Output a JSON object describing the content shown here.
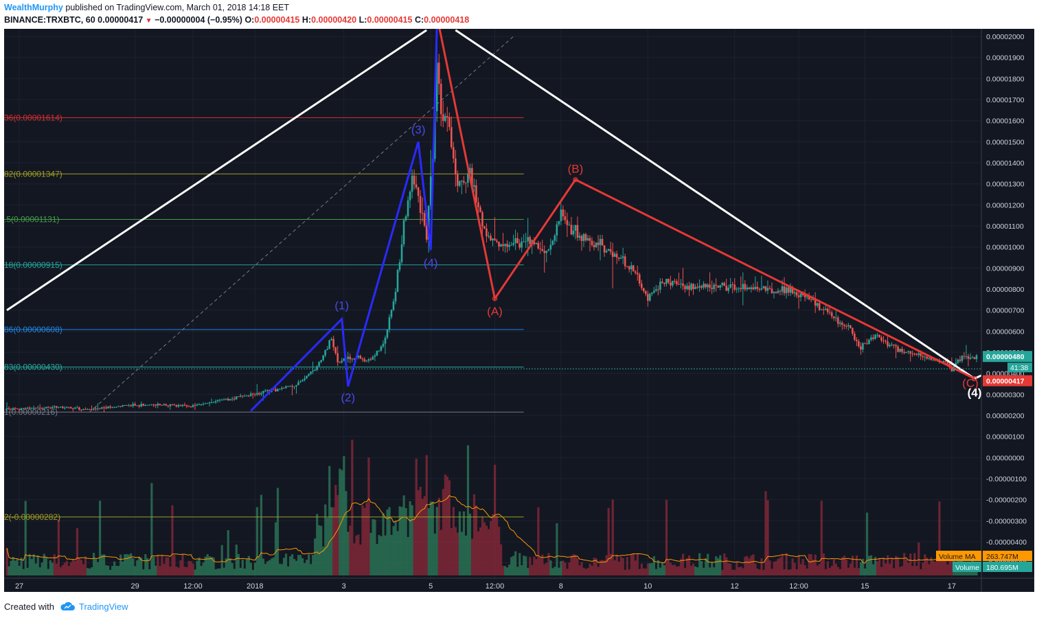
{
  "header": {
    "author": "WealthMurphy",
    "published": "published on TradingView.com, March 01, 2018 14:18 EET",
    "symbol": "BINANCE:TRXBTC, 60",
    "last_price": "0.00000417",
    "change": "−0.00000004 (−0.95%)",
    "o_label": "O:",
    "o_value": "0.00000415",
    "h_label": "H:",
    "h_value": "0.00000420",
    "l_label": "L:",
    "l_value": "0.00000415",
    "c_label": "C:",
    "c_value": "0.00000418"
  },
  "footer": {
    "created_with": "Created with",
    "brand": "TradingView"
  },
  "colors": {
    "background": "#131722",
    "up": "#26a69a",
    "down": "#ef5350",
    "wave_impulse": "#2a2aff",
    "wave_corrective": "#e53935",
    "trendline": "#ffffff",
    "price_tag": "#e53935",
    "volume_ma": "#ff9800",
    "volume_up": "#2e7d5b",
    "volume_down": "#8e2a3a"
  },
  "chart_data": {
    "type": "candlestick",
    "title": "",
    "xlabel": "",
    "ylabel": "",
    "ylim": [
      -5.5e-06,
      2.01e-05
    ],
    "grid": true,
    "y_ticks": [
      "0.00002000",
      "0.00001900",
      "0.00001800",
      "0.00001700",
      "0.00001600",
      "0.00001500",
      "0.00001400",
      "0.00001300",
      "0.00001200",
      "0.00001100",
      "0.00001000",
      "0.00000900",
      "0.00000800",
      "0.00000700",
      "0.00000600",
      "0.00000500",
      "0.00000400",
      "0.00000300",
      "0.00000200",
      "0.00000100",
      "0.00000000",
      "-0.00000100",
      "-0.00000200",
      "-0.00000300",
      "-0.00000400",
      "-0.00000500"
    ],
    "x_ticks": [
      {
        "label": "27",
        "idx": 6
      },
      {
        "label": "29",
        "idx": 62
      },
      {
        "label": "12:00",
        "idx": 90
      },
      {
        "label": "2018",
        "idx": 120
      },
      {
        "label": "3",
        "idx": 163
      },
      {
        "label": "5",
        "idx": 205
      },
      {
        "label": "12:00",
        "idx": 236
      },
      {
        "label": "8",
        "idx": 268
      },
      {
        "label": "10",
        "idx": 310
      },
      {
        "label": "12",
        "idx": 352
      },
      {
        "label": "12:00",
        "idx": 383
      },
      {
        "label": "15",
        "idx": 415
      },
      {
        "label": "17",
        "idx": 457
      }
    ],
    "price_keypoints": [
      [
        0,
        2.29e-06
      ],
      [
        10,
        2.33e-06
      ],
      [
        22,
        2.4e-06
      ],
      [
        38,
        2.28e-06
      ],
      [
        55,
        2.45e-06
      ],
      [
        72,
        2.5e-06
      ],
      [
        90,
        2.45e-06
      ],
      [
        110,
        2.83e-06
      ],
      [
        128,
        3.2e-06
      ],
      [
        140,
        3.45e-06
      ],
      [
        150,
        4.32e-06
      ],
      [
        157,
        5.6e-06
      ],
      [
        160,
        4.5e-06
      ],
      [
        165,
        4.8e-06
      ],
      [
        175,
        4.6e-06
      ],
      [
        182,
        5.3e-06
      ],
      [
        188,
        8e-06
      ],
      [
        192,
        1.1e-05
      ],
      [
        196,
        1.33e-05
      ],
      [
        200,
        1.2e-05
      ],
      [
        203,
        1.05e-05
      ],
      [
        206,
        1.45e-05
      ],
      [
        208,
        1.85e-05
      ],
      [
        210,
        1.65e-05
      ],
      [
        214,
        1.55e-05
      ],
      [
        218,
        1.3e-05
      ],
      [
        224,
        1.35e-05
      ],
      [
        230,
        1.1e-05
      ],
      [
        240,
        1e-05
      ],
      [
        252,
        1.03e-05
      ],
      [
        262,
        9.8e-06
      ],
      [
        268,
        1.15e-05
      ],
      [
        275,
        1.07e-05
      ],
      [
        290,
        9.9e-06
      ],
      [
        302,
        9e-06
      ],
      [
        310,
        7.6e-06
      ],
      [
        318,
        8.4e-06
      ],
      [
        332,
        8.1e-06
      ],
      [
        345,
        8.2e-06
      ],
      [
        360,
        8e-06
      ],
      [
        378,
        7.9e-06
      ],
      [
        392,
        7.3e-06
      ],
      [
        408,
        6.1e-06
      ],
      [
        412,
        5.2e-06
      ],
      [
        420,
        5.8e-06
      ],
      [
        432,
        5.1e-06
      ],
      [
        445,
        4.7e-06
      ],
      [
        452,
        4.6e-06
      ],
      [
        457,
        4.17e-06
      ],
      [
        462,
        4.8e-06
      ]
    ],
    "fib_levels": [
      {
        "label": "36(0.00001614)",
        "price": 1.614e-05,
        "color": "#d32f2f"
      },
      {
        "label": "82(0.00001347)",
        "price": 1.347e-05,
        "color": "#9e9d24"
      },
      {
        "label": ".5(0.00001131)",
        "price": 1.131e-05,
        "color": "#43a047"
      },
      {
        "label": "18(0.00000915)",
        "price": 9.15e-06,
        "color": "#26a69a"
      },
      {
        "label": "86(0.00000608)",
        "price": 6.08e-06,
        "color": "#1e88e5"
      },
      {
        "label": "83(0.00000430)",
        "price": 4.3e-06,
        "color": "#26a69a"
      },
      {
        "label": "1(0.00000216)",
        "price": 2.16e-06,
        "color": "#787b86"
      },
      {
        "label": "2(-0.00000282)",
        "price": -2.82e-06,
        "color": "#9e9d24"
      }
    ],
    "impulse_waves": [
      {
        "label": "",
        "idx": 118,
        "price": 2.22e-06
      },
      {
        "label": "(1)",
        "idx": 162,
        "price": 6.58e-06
      },
      {
        "label": "(2)",
        "idx": 165,
        "price": 3.38e-06
      },
      {
        "label": "(3)",
        "idx": 199,
        "price": 1.5e-05
      },
      {
        "label": "(4)",
        "idx": 205,
        "price": 9.85e-06
      },
      {
        "label": "",
        "idx": 208,
        "price": 2.05e-05
      }
    ],
    "corrective_waves": [
      {
        "label": "",
        "idx": 209,
        "price": 2.05e-05
      },
      {
        "label": "(A)",
        "idx": 236,
        "price": 7.55e-06
      },
      {
        "label": "(B)",
        "idx": 275,
        "price": 1.32e-05
      },
      {
        "label": "(C)",
        "idx": 468,
        "price": 3.75e-06
      }
    ],
    "trendlines": [
      {
        "from": [
          0,
          7e-06
        ],
        "to": [
          203,
          2.03e-05
        ]
      },
      {
        "from": [
          217,
          2.03e-05
        ],
        "to": [
          468,
          3.75e-06
        ]
      }
    ],
    "wave4_label": "(4)",
    "price_tags": [
      {
        "label": "0.00000480",
        "color": "#26a69a",
        "price": 4.8e-06
      },
      {
        "label": "0.00000417",
        "color": "#e53935",
        "price": 4.17e-06
      }
    ],
    "countdown": "41:38",
    "volume_ma": {
      "label": "Volume MA",
      "value": "263.747M"
    },
    "volume": {
      "label": "Volume",
      "value": "180.695M"
    }
  }
}
